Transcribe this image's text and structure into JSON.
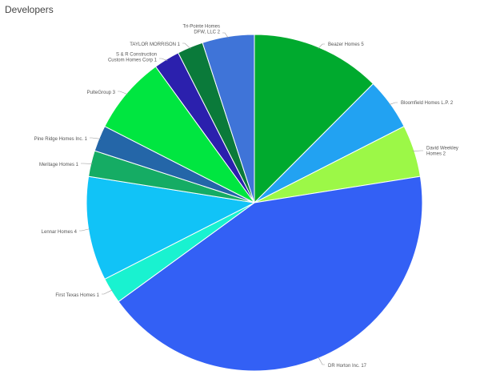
{
  "title": "Developers",
  "chart_data": {
    "type": "pie",
    "title": "Developers",
    "start_angle_deg": 0,
    "direction": "clockwise",
    "slices": [
      {
        "key": "beazer",
        "name": "Beazer Homes",
        "value": 5,
        "color": "#00aa2e",
        "label_lines": [
          "Beazer Homes 5"
        ]
      },
      {
        "key": "bloomfield",
        "name": "Bloomfield Homes L.P.",
        "value": 2,
        "color": "#22a2f2",
        "label_lines": [
          "Bloomfield Homes L.P. 2"
        ]
      },
      {
        "key": "david-weekley",
        "name": "David Weekley Homes",
        "value": 2,
        "color": "#9cf847",
        "label_lines": [
          "David Weekley",
          "Homes 2"
        ]
      },
      {
        "key": "dr-horton",
        "name": "DR Horton Inc.",
        "value": 17,
        "color": "#3360f5",
        "label_lines": [
          "DR Horton Inc. 17"
        ]
      },
      {
        "key": "first-texas",
        "name": "First Texas Homes",
        "value": 1,
        "color": "#19f2d0",
        "label_lines": [
          "First Texas Homes 1"
        ]
      },
      {
        "key": "lennar",
        "name": "Lennar Homes",
        "value": 4,
        "color": "#11c3f7",
        "label_lines": [
          "Lennar Homes 4"
        ]
      },
      {
        "key": "meritage",
        "name": "Meritage Homes",
        "value": 1,
        "color": "#15ac64",
        "label_lines": [
          "Meritage Homes 1"
        ]
      },
      {
        "key": "pine-ridge",
        "name": "Pine Ridge Homes Inc.",
        "value": 1,
        "color": "#2466a8",
        "label_lines": [
          "Pine Ridge Homes Inc. 1"
        ]
      },
      {
        "key": "pulte",
        "name": "PulteGroup",
        "value": 3,
        "color": "#00e640",
        "label_lines": [
          "PulteGroup 3"
        ]
      },
      {
        "key": "s-and-r",
        "name": "S & R Construction Custom Homes Corp",
        "value": 1,
        "color": "#2b20ad",
        "label_lines": [
          "S & R Construction",
          "Custom Homes Corp 1"
        ]
      },
      {
        "key": "taylor-morrison",
        "name": "TAYLOR MORRISON",
        "value": 1,
        "color": "#0a7a3a",
        "label_lines": [
          "TAYLOR MORRISON 1"
        ]
      },
      {
        "key": "tri-pointe",
        "name": "Tri-Pointe Homes DFW, LLC",
        "value": 2,
        "color": "#3f74d8",
        "label_lines": [
          "Tri-Pointe Homes",
          "DFW, LLC 2"
        ]
      }
    ]
  }
}
